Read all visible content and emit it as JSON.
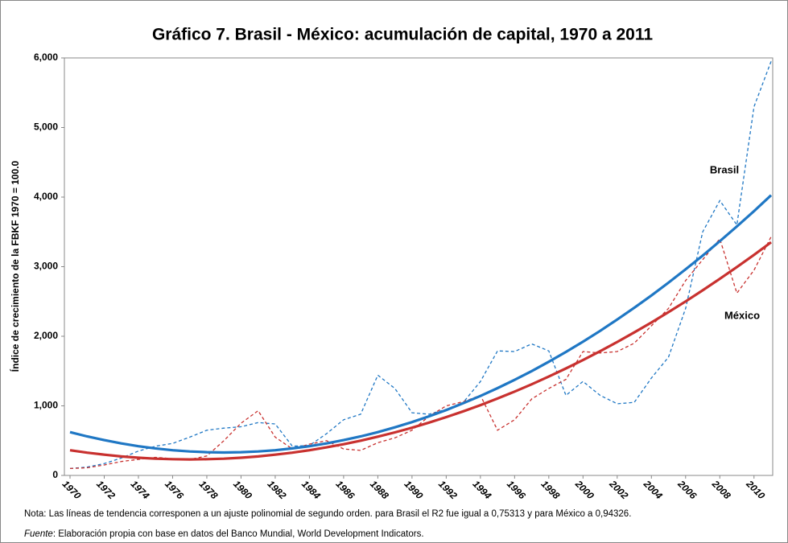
{
  "chart_data": {
    "type": "line",
    "title": "Gráfico 7. Brasil - México: acumulación de capital, 1970 a 2011",
    "y_label": "Índice de crecimiento de la FBKF 1970 = 100.0",
    "x": [
      1970,
      1971,
      1972,
      1973,
      1974,
      1975,
      1976,
      1977,
      1978,
      1979,
      1980,
      1981,
      1982,
      1983,
      1984,
      1985,
      1986,
      1987,
      1988,
      1989,
      1990,
      1991,
      1992,
      1993,
      1994,
      1995,
      1996,
      1997,
      1998,
      1999,
      2000,
      2001,
      2002,
      2003,
      2004,
      2005,
      2006,
      2007,
      2008,
      2009,
      2010,
      2011
    ],
    "xlim": [
      1970,
      2011
    ],
    "xticks": [
      1970,
      1972,
      1974,
      1976,
      1978,
      1980,
      1982,
      1984,
      1986,
      1988,
      1990,
      1992,
      1994,
      1996,
      1998,
      2000,
      2002,
      2004,
      2006,
      2008,
      2010
    ],
    "ylim": [
      0,
      6000
    ],
    "yticks": [
      0,
      {
        "value": 1000,
        "label": "1,000"
      },
      {
        "value": 2000,
        "label": "2,000"
      },
      {
        "value": 3000,
        "label": "3,000"
      },
      {
        "value": 4000,
        "label": "4,000"
      },
      {
        "value": 5000,
        "label": "5,000"
      },
      {
        "value": 6000,
        "label": "6,000"
      }
    ],
    "series": [
      {
        "name": "Brasil",
        "color": "#1f77c4",
        "values": [
          100,
          120,
          170,
          250,
          350,
          420,
          460,
          550,
          650,
          680,
          700,
          760,
          740,
          420,
          430,
          600,
          800,
          880,
          1440,
          1250,
          900,
          880,
          950,
          1050,
          1350,
          1790,
          1780,
          1890,
          1790,
          1150,
          1350,
          1150,
          1030,
          1050,
          1400,
          1700,
          2400,
          3500,
          3950,
          3600,
          5300,
          5950
        ],
        "trend": [
          622,
          561,
          507,
          460,
          420,
          388,
          362,
          344,
          334,
          330,
          334,
          344,
          362,
          388,
          420,
          460,
          507,
          561,
          622,
          691,
          767,
          850,
          940,
          1038,
          1142,
          1254,
          1373,
          1500,
          1633,
          1774,
          1922,
          2077,
          2240,
          2409,
          2586,
          2770,
          2962,
          3160,
          3366,
          3579,
          3799,
          4027
        ]
      },
      {
        "name": "México",
        "color": "#c8312f",
        "values": [
          100,
          110,
          150,
          200,
          230,
          260,
          240,
          230,
          280,
          500,
          750,
          930,
          550,
          380,
          450,
          500,
          380,
          360,
          470,
          540,
          650,
          850,
          1000,
          1060,
          1150,
          650,
          800,
          1100,
          1250,
          1380,
          1780,
          1760,
          1780,
          1900,
          2150,
          2400,
          2800,
          3100,
          3400,
          2620,
          2950,
          3430
        ],
        "trend": [
          362,
          327,
          298,
          273,
          254,
          241,
          233,
          230,
          233,
          241,
          254,
          273,
          298,
          327,
          362,
          403,
          449,
          500,
          557,
          619,
          686,
          759,
          838,
          921,
          1010,
          1105,
          1205,
          1310,
          1421,
          1537,
          1658,
          1785,
          1918,
          2055,
          2198,
          2347,
          2501,
          2660,
          2825,
          2995,
          3170,
          3351
        ]
      }
    ],
    "note": "Nota: Las líneas de tendencia corresponen a un ajuste polinomial de segundo orden. para Brasil el R2 fue igual a 0,75313 y para México a 0,94326.",
    "source_label": "Fuente",
    "source_text": ": Elaboración propia con base en datos del Banco Mundial, World Development Indicators."
  }
}
